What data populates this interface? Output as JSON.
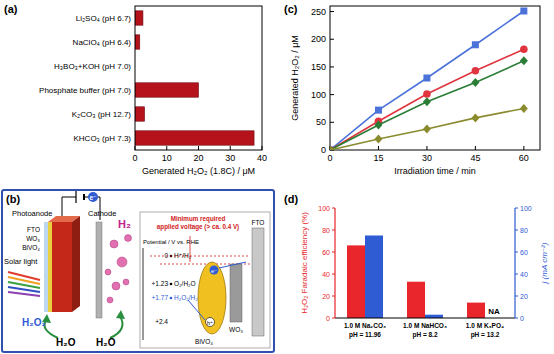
{
  "chart_data": [
    {
      "type": "bar",
      "title": "(a)",
      "orientation": "horizontal",
      "categories": [
        "Li₂SO₄ (pH 6.7)",
        "NaClO₄ (pH 6.4)",
        "H₃BO₃+KOH (pH 7.0)",
        "Phosphate buffer (pH 7.0)",
        "K₂CO₃ (pH 12.7)",
        "KHCO₃ (pH 7.3)"
      ],
      "values": [
        2.5,
        1.5,
        0,
        20,
        3,
        37.5
      ],
      "color": "#b5121b",
      "xlim": [
        0,
        40
      ],
      "xticks": [
        0,
        10,
        20,
        30,
        40
      ],
      "x_label": "Generated H₂O₂ (1.8C) / μM"
    },
    {
      "type": "line",
      "title": "(c)",
      "line_style": "solid",
      "x": [
        0,
        15,
        30,
        45,
        60
      ],
      "series": [
        {
          "color": "#4a72d9",
          "marker": "square",
          "values": [
            0,
            72,
            130,
            190,
            251
          ]
        },
        {
          "color": "#e0343f",
          "marker": "circle",
          "values": [
            0,
            52,
            101,
            143,
            182
          ]
        },
        {
          "color": "#2b7d36",
          "marker": "diamond",
          "values": [
            0,
            45,
            87,
            122,
            161
          ]
        },
        {
          "color": "#8a8a2e",
          "marker": "diamond",
          "values": [
            0,
            20,
            38,
            58,
            75
          ]
        }
      ],
      "xlim": [
        0,
        65
      ],
      "xticks": [
        0,
        15,
        30,
        45,
        60
      ],
      "ylim": [
        0,
        260
      ],
      "yticks": [
        0,
        50,
        100,
        150,
        200,
        250
      ],
      "x_label": "Irradiation time / min",
      "y_label": "Generated H₂O₂ / μM"
    },
    {
      "type": "bar",
      "title": "(d)",
      "categories": [
        "1.0 M Na₂CO₃\npH = 11.96",
        "1.0 M NaHCO₃\npH = 8.2",
        "1.0 M K₃PO₄\npH = 13.2"
      ],
      "series": [
        {
          "color": "#e8262b",
          "values": [
            66,
            33,
            14
          ],
          "axis": "y"
        },
        {
          "color": "#2f5bd3",
          "values": [
            75,
            3,
            null
          ],
          "axis": "y2"
        }
      ],
      "ylim": [
        0,
        100
      ],
      "yticks": [
        0,
        20,
        40,
        60,
        80,
        100
      ],
      "y2lim": [
        0,
        100
      ],
      "y2ticks": [
        0,
        20,
        40,
        60,
        80,
        100
      ],
      "y_label": "H₂O₂ Faradaic efficiency (%)",
      "y2_label": "j (mA cm⁻²)",
      "annotations": [
        {
          "text": "NA",
          "category": 2
        }
      ]
    }
  ],
  "diagram": {
    "label": "(b)",
    "photoanode": "Photoanode",
    "cathode": "Cathode",
    "light": "Solar light",
    "anode_layers": [
      "FTO",
      "WO₃",
      "BiVO₄"
    ],
    "anode_product": "H₂O₂",
    "anode_reactant": "H₂O",
    "cathode_product": "H₂",
    "cathode_reactant": "H₂O",
    "electron": "e⁻",
    "hole": "h⁺",
    "energy": {
      "axis_label": "Potential / V vs. RHE",
      "note": [
        "Minimum required",
        "applied voltage (> ca. 0.4 V)"
      ],
      "levels": [
        {
          "potential": "0",
          "couple": "H⁺/H₂"
        },
        {
          "potential": "+1.23",
          "couple": "O₂/H₂O"
        },
        {
          "potential": "+1.77",
          "couple": "H₂O₂/H₂O"
        },
        {
          "potential": "+2.4"
        }
      ],
      "semiconductor": "BiVO₄",
      "layer": "WO₃",
      "substrate": "FTO"
    }
  }
}
